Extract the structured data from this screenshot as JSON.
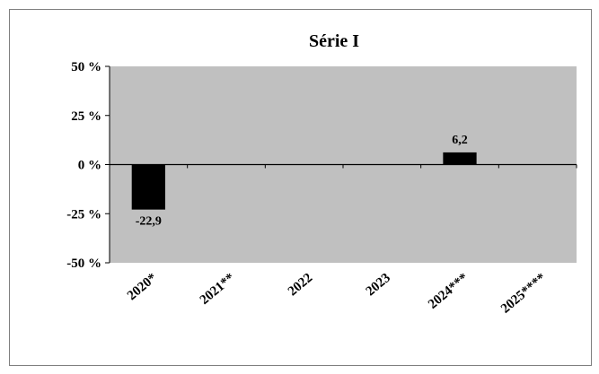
{
  "chart_data": {
    "type": "bar",
    "title": "Série I",
    "xlabel": "",
    "ylabel": "",
    "categories": [
      "2020*",
      "2021**",
      "2022",
      "2023",
      "2024***",
      "2025****"
    ],
    "values": [
      -22.9,
      null,
      null,
      null,
      6.2,
      null
    ],
    "data_labels": [
      "-22,9",
      "",
      "",
      "",
      "6,2",
      ""
    ],
    "ylim": [
      -50,
      50
    ],
    "yticks": [
      50,
      25,
      0,
      -25,
      -50
    ],
    "ytick_labels": [
      "50 %",
      "25 %",
      "0 %",
      "-25 %",
      "-50 %"
    ],
    "grid": false,
    "legend": "none",
    "colors": {
      "plot_area": "#c0c0c0",
      "bar": "#000000",
      "axis": "#000000"
    }
  }
}
